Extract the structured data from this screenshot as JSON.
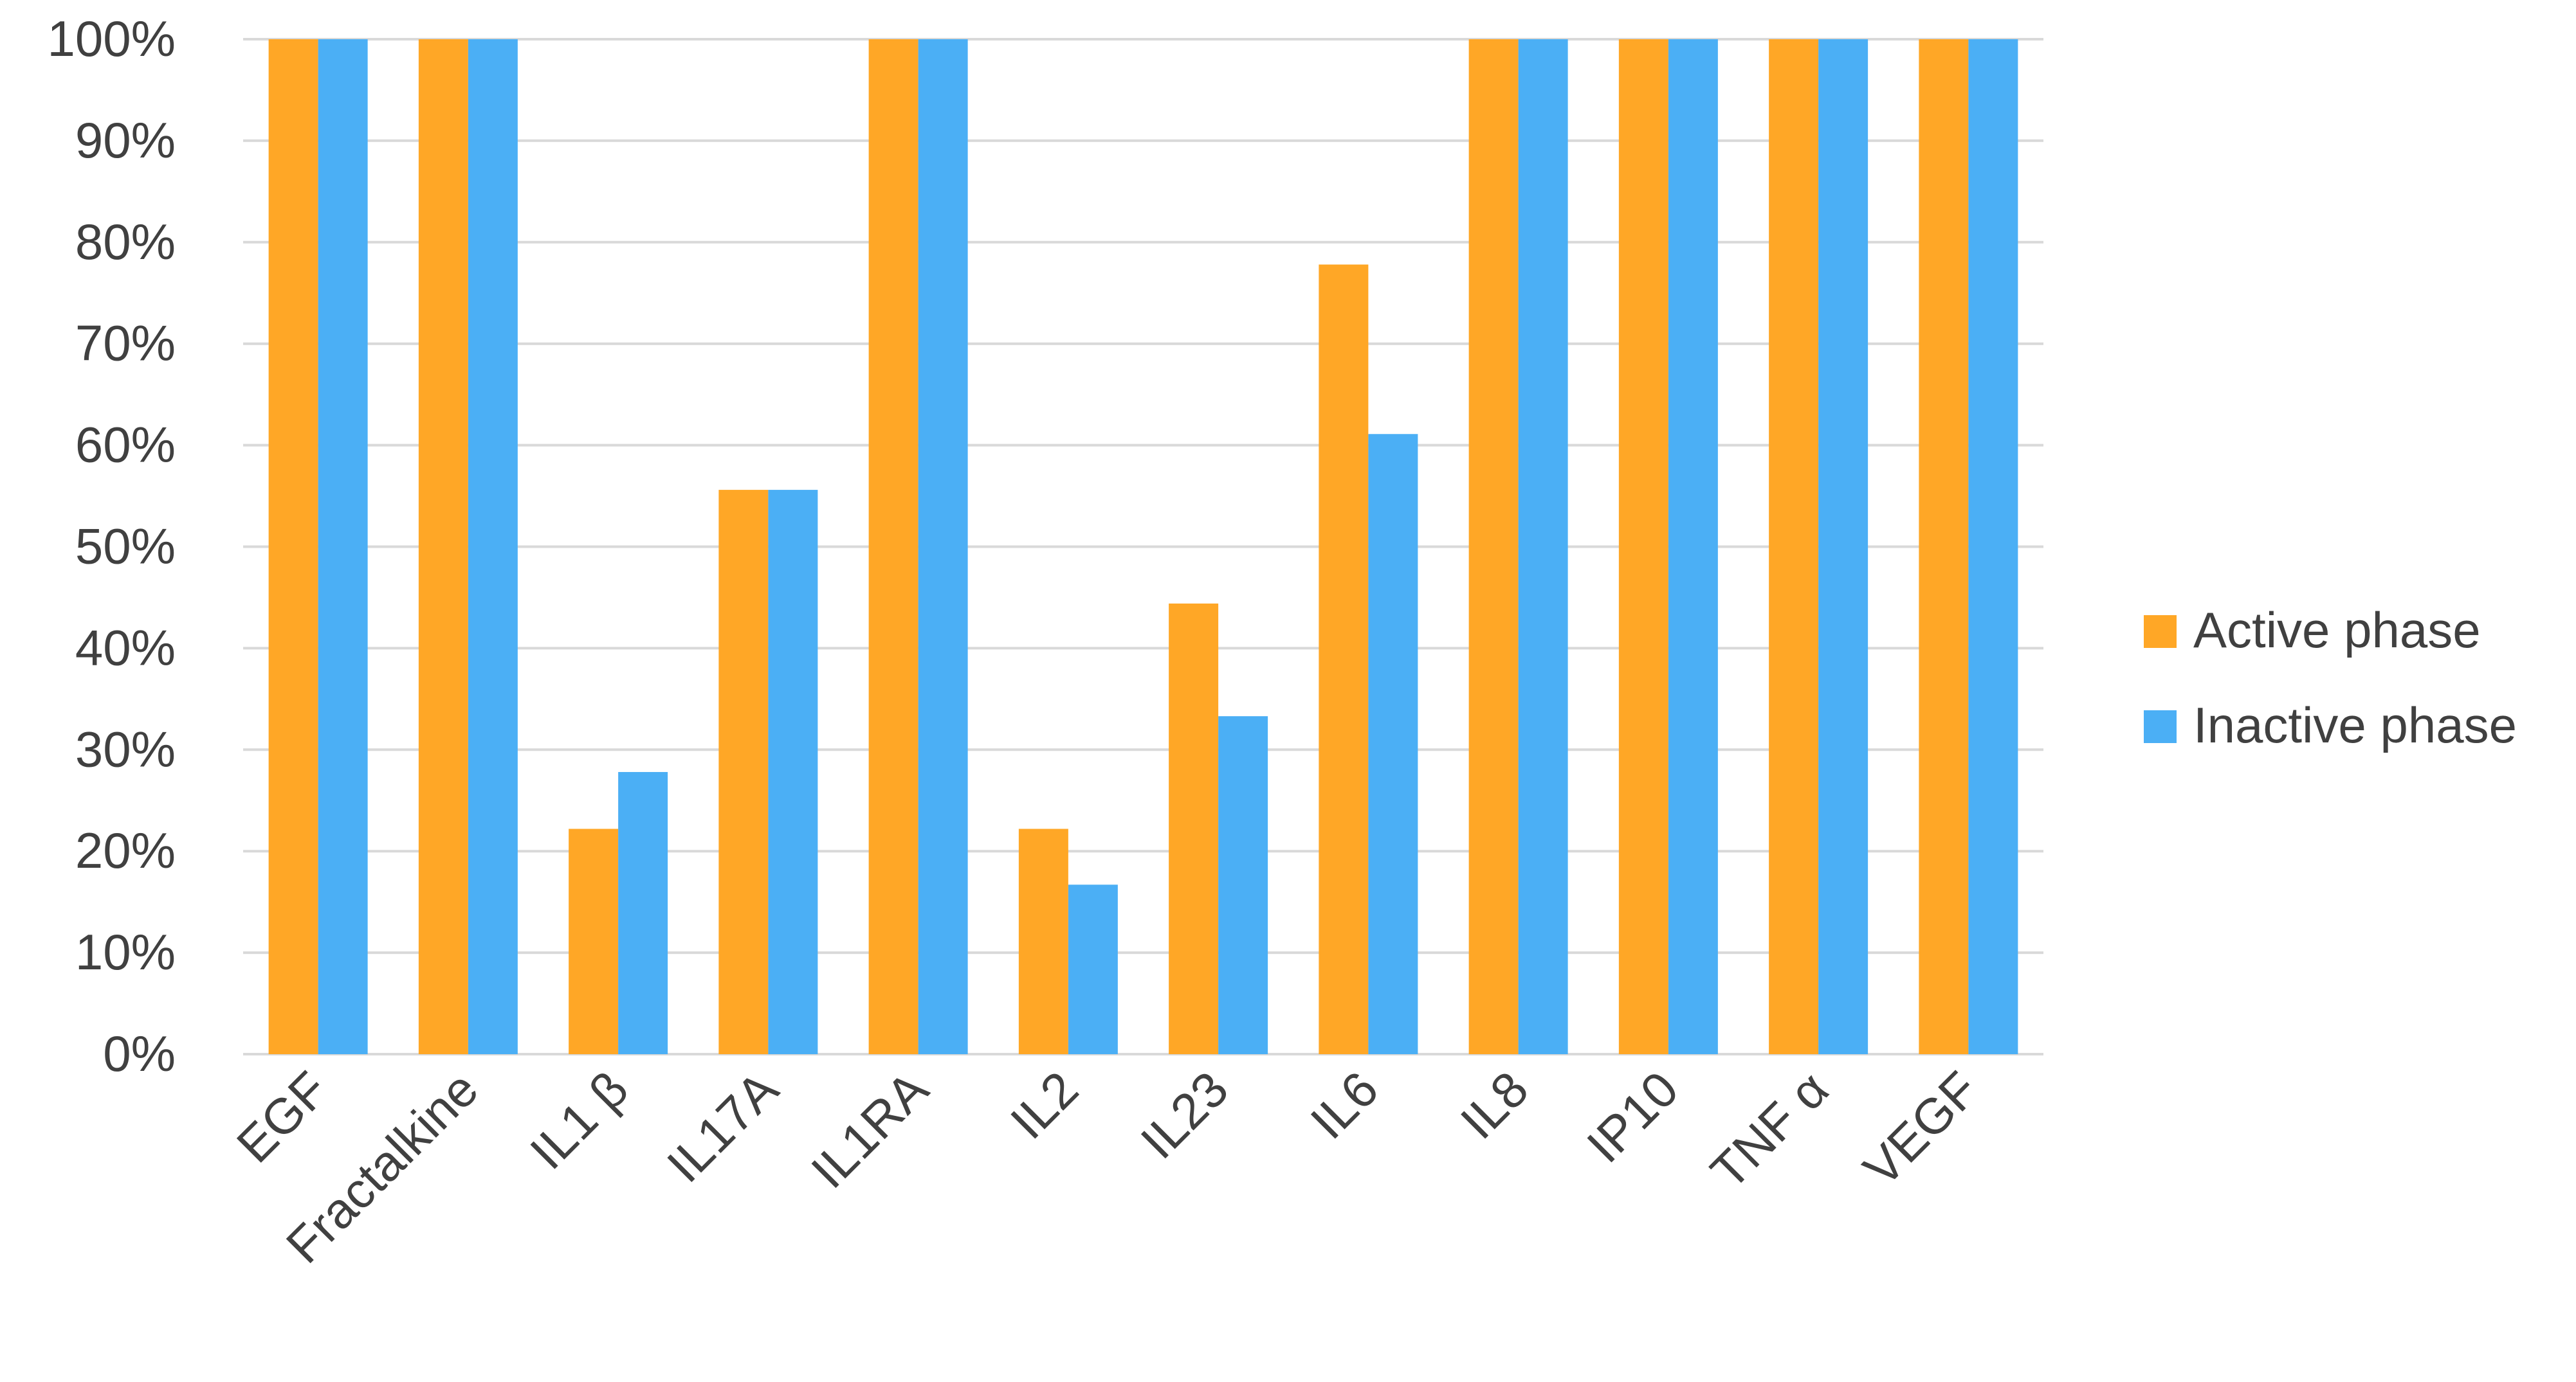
{
  "chart_data": {
    "type": "bar",
    "title": "",
    "xlabel": "",
    "ylabel": "",
    "categories": [
      "EGF",
      "Fractalkine",
      "IL1 β",
      "IL17A",
      "IL1RA",
      "IL2",
      "IL23",
      "IL6",
      "IL8",
      "IP10",
      "TNF α",
      "VEGF"
    ],
    "series": [
      {
        "name": "Active phase",
        "color": "#FFA726",
        "values": [
          100,
          100,
          22.2,
          55.6,
          100,
          22.2,
          44.4,
          77.8,
          100,
          100,
          100,
          100
        ]
      },
      {
        "name": "Inactive phase",
        "color": "#4BAFF5",
        "values": [
          100,
          100,
          27.8,
          55.6,
          100,
          16.7,
          33.3,
          61.1,
          100,
          100,
          100,
          100
        ]
      }
    ],
    "ylim": [
      0,
      100
    ],
    "yticks": [
      0,
      10,
      20,
      30,
      40,
      50,
      60,
      70,
      80,
      90,
      100
    ],
    "ytick_format": "percent",
    "grid": true,
    "legend_position": "right"
  }
}
